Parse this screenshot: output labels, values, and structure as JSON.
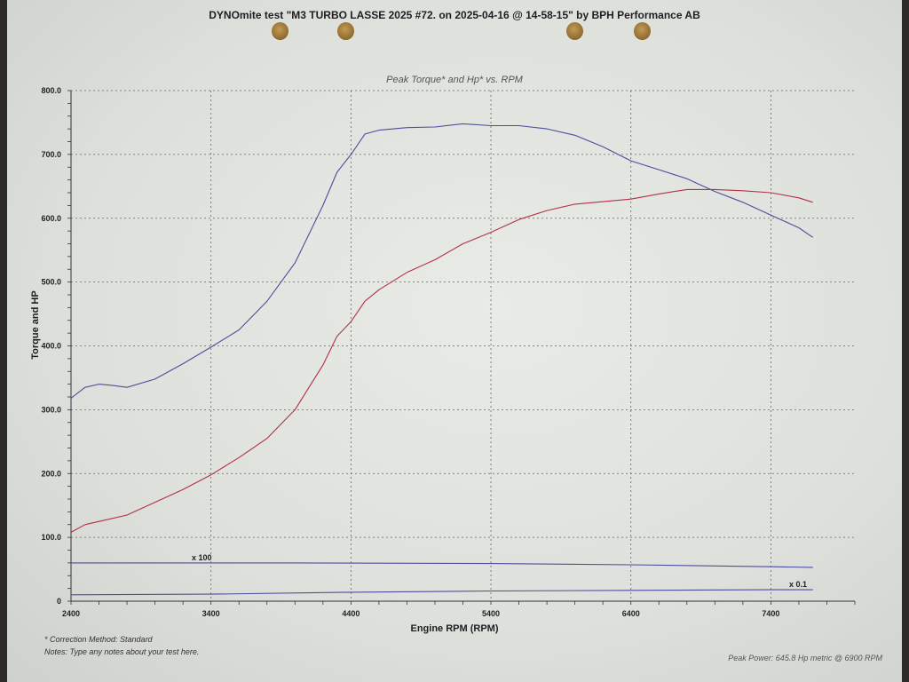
{
  "header": {
    "title": "DYNOmite test \"M3 TURBO LASSE 2025 #72. on 2025-04-16 @ 14-58-15\" by BPH Performance AB"
  },
  "footer": {
    "correction_method": "* Correction Method: Standard",
    "notes": "Notes: Type any notes about your test here.",
    "peak_power": "Peak Power: 645.8 Hp metric @ 6900 RPM"
  },
  "chart_data": {
    "type": "line",
    "title": "Peak Torque* and Hp* vs. RPM",
    "xlabel": "Engine RPM (RPM)",
    "ylabel": "Torque and HP",
    "xlim": [
      2400,
      8000
    ],
    "ylim": [
      0,
      800
    ],
    "x_ticks": [
      2400,
      3400,
      4400,
      5400,
      6400,
      7400
    ],
    "x_tick_labels": [
      "2400",
      "3400",
      "4400",
      "5400",
      "6400",
      "7400"
    ],
    "y_ticks": [
      0,
      100,
      200,
      300,
      400,
      500,
      600,
      700,
      800
    ],
    "y_tick_labels": [
      "0",
      "100.0",
      "200.0",
      "300.0",
      "400.0",
      "500.0",
      "600.0",
      "700.0",
      "800.0"
    ],
    "grid": true,
    "annotations": [
      "x 100",
      "x 0.1"
    ],
    "colors": {
      "torque": "#4a4e9c",
      "hp": "#b43046",
      "aux": "#4a4e9c"
    },
    "series": [
      {
        "key": "torque",
        "x": [
          2400,
          2500,
          2600,
          2700,
          2800,
          3000,
          3200,
          3400,
          3600,
          3800,
          4000,
          4200,
          4300,
          4400,
          4500,
          4600,
          4800,
          5000,
          5200,
          5400,
          5600,
          5800,
          6000,
          6200,
          6400,
          6600,
          6800,
          7000,
          7200,
          7400,
          7600,
          7700
        ],
        "y": [
          318,
          335,
          340,
          338,
          335,
          348,
          372,
          398,
          425,
          470,
          530,
          620,
          672,
          700,
          732,
          738,
          742,
          743,
          748,
          745,
          745,
          740,
          730,
          712,
          690,
          676,
          662,
          642,
          625,
          605,
          585,
          570
        ]
      },
      {
        "key": "hp",
        "x": [
          2400,
          2500,
          2600,
          2800,
          3000,
          3200,
          3400,
          3600,
          3800,
          4000,
          4200,
          4300,
          4400,
          4500,
          4600,
          4800,
          5000,
          5200,
          5400,
          5600,
          5800,
          6000,
          6200,
          6400,
          6600,
          6800,
          7000,
          7200,
          7400,
          7600,
          7700
        ],
        "y": [
          108,
          120,
          125,
          135,
          155,
          175,
          198,
          225,
          255,
          300,
          370,
          415,
          438,
          470,
          488,
          515,
          535,
          560,
          578,
          598,
          612,
          622,
          626,
          630,
          638,
          645,
          645,
          643,
          640,
          632,
          625
        ]
      },
      {
        "key": "aux_x100",
        "x": [
          2400,
          4000,
          5400,
          6400,
          7400,
          7700
        ],
        "y": [
          60,
          60,
          59,
          57,
          54,
          53
        ]
      },
      {
        "key": "aux_x0_1",
        "x": [
          2400,
          3400,
          4400,
          5400,
          6400,
          7400,
          7700
        ],
        "y": [
          10,
          11,
          14,
          16,
          17,
          18,
          18
        ]
      }
    ]
  }
}
